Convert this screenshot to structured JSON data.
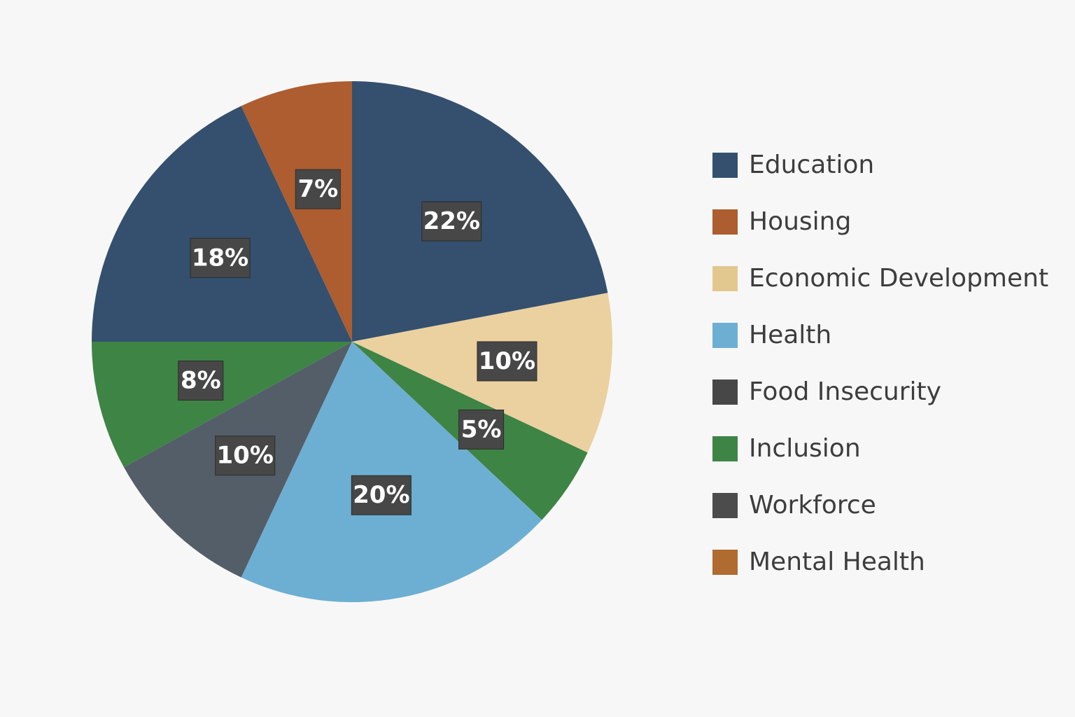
{
  "chart_data": {
    "type": "pie",
    "title": "",
    "slices": [
      {
        "label": "Education",
        "value": 22,
        "display": "22%",
        "color": "#34506e"
      },
      {
        "label": "Economic Development",
        "value": 10,
        "display": "10%",
        "color": "#ebd19f"
      },
      {
        "label": "Inclusion",
        "value": 5,
        "display": "5%",
        "color": "#3e8445"
      },
      {
        "label": "Health",
        "value": 20,
        "display": "20%",
        "color": "#6dafd2"
      },
      {
        "label": "Workforce",
        "value": 10,
        "display": "10%",
        "color": "#545e69"
      },
      {
        "label": "Inclusion",
        "value": 8,
        "display": "8%",
        "color": "#3e8445"
      },
      {
        "label": "Education",
        "value": 18,
        "display": "18%",
        "color": "#34506e"
      },
      {
        "label": "Housing",
        "value": 7,
        "display": "7%",
        "color": "#ad5d2f"
      }
    ],
    "legend_position": "right",
    "legend": [
      {
        "label": "Education",
        "color": "#34506e"
      },
      {
        "label": "Housing",
        "color": "#ad5d2f"
      },
      {
        "label": "Economic Development",
        "color": "#e2c88f"
      },
      {
        "label": "Health",
        "color": "#6dafd2"
      },
      {
        "label": "Food Insecurity",
        "color": "#474747"
      },
      {
        "label": "Inclusion",
        "color": "#3e8445"
      },
      {
        "label": "Workforce",
        "color": "#4c4c4c"
      },
      {
        "label": "Mental Health",
        "color": "#b06b30"
      }
    ]
  }
}
